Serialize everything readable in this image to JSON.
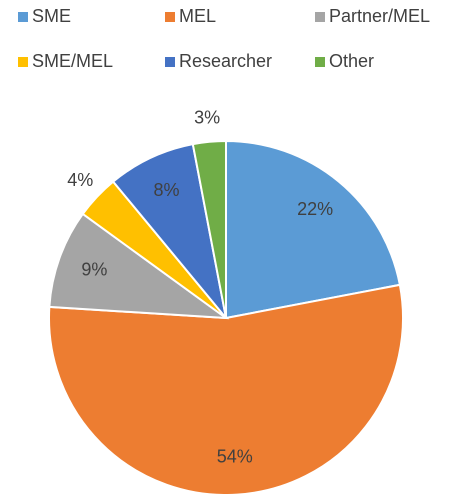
{
  "chart_data": {
    "type": "pie",
    "categories": [
      "SME",
      "MEL",
      "Partner/MEL",
      "SME/MEL",
      "Researcher",
      "Other"
    ],
    "values": [
      22,
      54,
      9,
      4,
      8,
      3
    ],
    "value_labels": [
      "22%",
      "54%",
      "9%",
      "4%",
      "8%",
      "3%"
    ],
    "colors": [
      "#5b9bd5",
      "#ed7d31",
      "#a5a5a5",
      "#ffc000",
      "#4472c4",
      "#70ad47"
    ],
    "legend": "top"
  }
}
